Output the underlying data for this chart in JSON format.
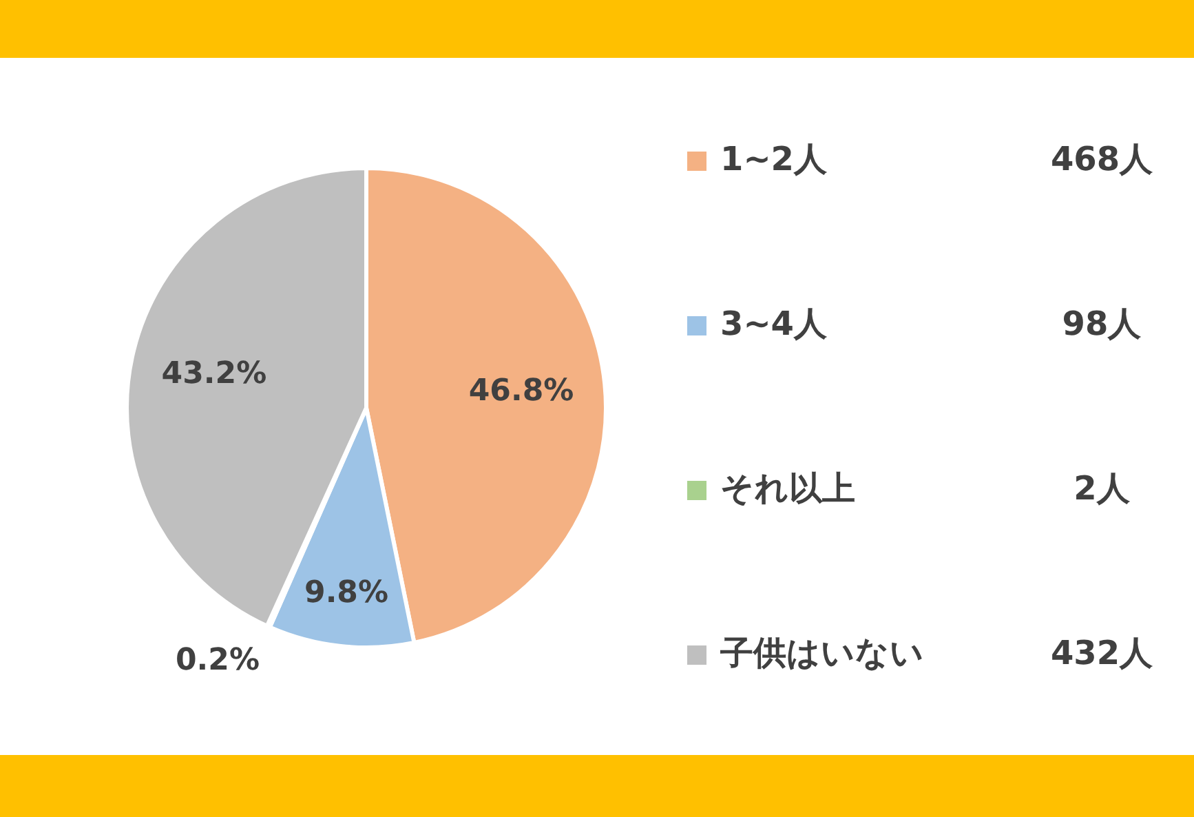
{
  "chart_data": {
    "type": "pie",
    "categories": [
      "1~2人",
      "3~4人",
      "それ以上",
      "子供はいない"
    ],
    "values": [
      46.8,
      9.8,
      0.2,
      43.2
    ],
    "colors": [
      "#f4b183",
      "#9dc3e6",
      "#a9d18e",
      "#bfbfbf"
    ],
    "value_labels": [
      "46.8%",
      "9.8%",
      "0.2%",
      "43.2%"
    ],
    "legend": "right",
    "annotations": [
      "468人",
      "98人",
      "2人",
      "432人"
    ]
  }
}
